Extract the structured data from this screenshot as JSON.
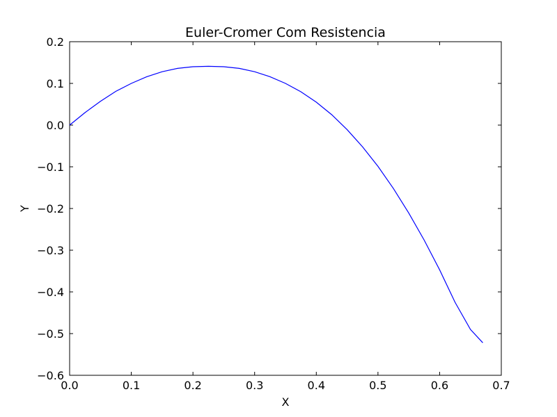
{
  "chart_data": {
    "type": "line",
    "title": "Euler-Cromer Com Resistencia",
    "xlabel": "X",
    "ylabel": "Y",
    "xlim": [
      0.0,
      0.7
    ],
    "ylim": [
      -0.6,
      0.2
    ],
    "xticks": [
      0.0,
      0.1,
      0.2,
      0.3,
      0.4,
      0.5,
      0.6,
      0.7
    ],
    "xtick_labels": [
      "0.0",
      "0.1",
      "0.2",
      "0.3",
      "0.4",
      "0.5",
      "0.6",
      "0.7"
    ],
    "yticks": [
      -0.6,
      -0.5,
      -0.4,
      -0.3,
      -0.2,
      -0.1,
      0.0,
      0.1,
      0.2
    ],
    "ytick_labels": [
      "−0.6",
      "−0.5",
      "−0.4",
      "−0.3",
      "−0.2",
      "−0.1",
      "0.0",
      "0.1",
      "0.2"
    ],
    "grid": false,
    "series": [
      {
        "color": "#0000ff",
        "x": [
          0.0,
          0.025,
          0.05,
          0.075,
          0.1,
          0.125,
          0.15,
          0.175,
          0.2,
          0.225,
          0.25,
          0.275,
          0.3,
          0.325,
          0.35,
          0.375,
          0.4,
          0.425,
          0.45,
          0.475,
          0.5,
          0.525,
          0.55,
          0.575,
          0.6,
          0.625,
          0.65,
          0.67
        ],
        "y": [
          0.0,
          0.03,
          0.057,
          0.081,
          0.1,
          0.116,
          0.128,
          0.136,
          0.14,
          0.141,
          0.14,
          0.136,
          0.128,
          0.116,
          0.1,
          0.08,
          0.055,
          0.025,
          -0.011,
          -0.052,
          -0.099,
          -0.152,
          -0.211,
          -0.276,
          -0.347,
          -0.425,
          -0.49,
          -0.522
        ]
      }
    ]
  }
}
